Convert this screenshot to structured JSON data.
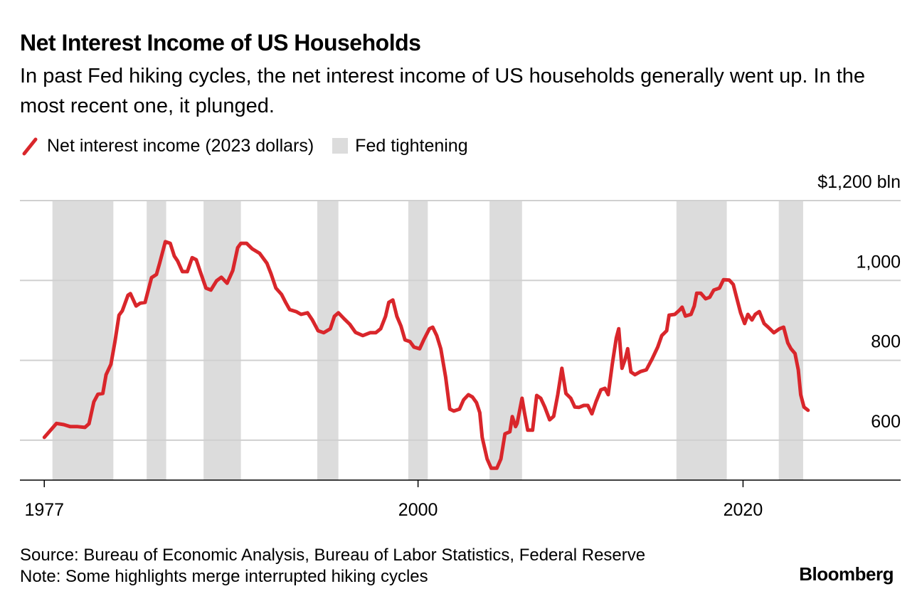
{
  "chart_data": {
    "type": "line",
    "title": "Net Interest Income of US Households",
    "subtitle": "In past Fed hiking cycles, the net interest income of US households generally went up. In the most recent one, it plunged.",
    "x": [
      1977.0,
      1977.3,
      1977.75,
      1978.2,
      1978.6,
      1979.05,
      1979.5,
      1979.75,
      1980.05,
      1980.3,
      1980.6,
      1980.8,
      1981.1,
      1981.35,
      1981.6,
      1981.8,
      1982.15,
      1982.3,
      1982.65,
      1982.9,
      1983.2,
      1983.6,
      1983.9,
      1984.1,
      1984.45,
      1984.75,
      1985.0,
      1985.2,
      1985.5,
      1985.8,
      1986.1,
      1986.35,
      1986.6,
      1986.95,
      1987.25,
      1987.6,
      1987.9,
      1988.25,
      1988.6,
      1988.9,
      1989.1,
      1989.45,
      1989.8,
      1990.25,
      1990.7,
      1990.95,
      1991.25,
      1991.6,
      1991.85,
      1992.1,
      1992.5,
      1992.8,
      1993.2,
      1993.5,
      1993.85,
      1994.2,
      1994.6,
      1994.85,
      1995.1,
      1995.45,
      1995.8,
      1996.15,
      1996.6,
      1997.05,
      1997.4,
      1997.7,
      1998.0,
      1998.2,
      1998.45,
      1998.7,
      1998.95,
      1999.2,
      1999.5,
      1999.75,
      2000.1,
      2000.35,
      2000.7,
      2000.9,
      2001.15,
      2001.4,
      2001.7,
      2001.95,
      2002.2,
      2002.55,
      2002.8,
      2003.1,
      2003.35,
      2003.6,
      2003.8,
      2003.95,
      2004.25,
      2004.5,
      2004.85,
      2005.1,
      2005.35,
      2005.65,
      2005.8,
      2006.0,
      2006.1,
      2006.4,
      2006.55,
      2006.75,
      2007.05,
      2007.3,
      2007.55,
      2007.8,
      2008.1,
      2008.35,
      2008.6,
      2008.85,
      2009.1,
      2009.4,
      2009.65,
      2009.9,
      2010.2,
      2010.45,
      2010.7,
      2010.95,
      2011.25,
      2011.5,
      2011.7,
      2011.95,
      2012.2,
      2012.35,
      2012.55,
      2012.75,
      2012.9,
      2013.1,
      2013.35,
      2013.7,
      2014.05,
      2014.4,
      2014.75,
      2015.0,
      2015.3,
      2015.45,
      2015.8,
      2016.1,
      2016.25,
      2016.45,
      2016.8,
      2017.0,
      2017.15,
      2017.4,
      2017.7,
      2017.95,
      2018.2,
      2018.55,
      2018.8,
      2019.15,
      2019.4,
      2019.6,
      2019.85,
      2020.1,
      2020.3,
      2020.55,
      2020.75,
      2021.0,
      2021.3,
      2021.55,
      2021.9,
      2022.25,
      2022.5,
      2022.75,
      2022.95,
      2023.2,
      2023.4,
      2023.55,
      2023.75,
      2024.0
    ],
    "series": [
      {
        "name": "Net interest income (2023 dollars)",
        "color": "#d9262b",
        "values": [
          607,
          621,
          642,
          639,
          634,
          634,
          632,
          641,
          696,
          715,
          717,
          764,
          790,
          847,
          913,
          924,
          963,
          967,
          936,
          943,
          945,
          1007,
          1015,
          1043,
          1097,
          1093,
          1061,
          1049,
          1022,
          1022,
          1057,
          1052,
          1022,
          981,
          976,
          999,
          1008,
          993,
          1025,
          1082,
          1093,
          1093,
          1079,
          1068,
          1043,
          1017,
          981,
          965,
          945,
          927,
          922,
          915,
          919,
          901,
          874,
          869,
          879,
          910,
          919,
          904,
          890,
          870,
          862,
          869,
          869,
          879,
          910,
          945,
          951,
          910,
          886,
          851,
          847,
          833,
          829,
          851,
          879,
          883,
          862,
          829,
          758,
          678,
          673,
          678,
          701,
          714,
          708,
          694,
          669,
          607,
          553,
          530,
          530,
          553,
          616,
          621,
          659,
          634,
          642,
          705,
          669,
          625,
          625,
          712,
          705,
          683,
          651,
          660,
          714,
          780,
          717,
          705,
          683,
          682,
          687,
          687,
          666,
          696,
          726,
          730,
          714,
          790,
          856,
          879,
          780,
          803,
          829,
          771,
          764,
          772,
          776,
          803,
          833,
          862,
          874,
          913,
          915,
          926,
          933,
          911,
          915,
          936,
          968,
          968,
          954,
          958,
          976,
          981,
          1002,
          1001,
          990,
          958,
          919,
          892,
          915,
          901,
          915,
          922,
          892,
          883,
          869,
          879,
          883,
          844,
          829,
          817,
          776,
          714,
          683,
          675
        ]
      }
    ],
    "shaded": {
      "name": "Fed tightening",
      "color": "#dcdcdc",
      "ranges": [
        [
          1977.5,
          1981.25
        ],
        [
          1983.3,
          1984.5
        ],
        [
          1986.8,
          1989.1
        ],
        [
          1993.8,
          1995.1
        ],
        [
          1999.4,
          2000.6
        ],
        [
          2004.4,
          2006.4
        ],
        [
          2015.9,
          2019.0
        ],
        [
          2022.2,
          2023.7
        ]
      ]
    },
    "xlim": [
      1975.5,
      2029.7
    ],
    "xticks": [
      1977,
      2000,
      2020
    ],
    "ylim": [
      500,
      1200
    ],
    "yticks": [
      600,
      800,
      {
        "value": 1000,
        "label": "1,000"
      },
      {
        "value": 1200,
        "label": "$1,200 bln"
      }
    ],
    "grid": true,
    "source": "Source: Bureau of Economic Analysis, Bureau of Labor Statistics, Federal Reserve",
    "note": "Note: Some highlights merge interrupted hiking cycles",
    "logo": "Bloomberg"
  }
}
